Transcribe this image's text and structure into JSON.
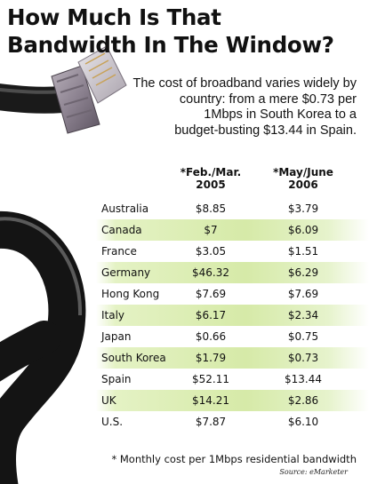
{
  "title_line1": "How Much Is That",
  "title_line2": "Bandwidth In The Window?",
  "subtitle_lines": [
    "The cost of broadband varies widely by",
    "country: from a mere $0.73 per",
    "1Mbps in South Korea to a",
    "budget-busting $13.44 in Spain."
  ],
  "footnote": "* Monthly cost per 1Mbps residential bandwidth",
  "source": "Source: eMarketer",
  "chart_data": {
    "type": "table",
    "columns": [
      {
        "line1": "*Feb./Mar.",
        "line2": "2005"
      },
      {
        "line1": "*May/June",
        "line2": "2006"
      }
    ],
    "rows": [
      {
        "country": "Australia",
        "v1": "$8.85",
        "v2": "$3.79",
        "shaded": false
      },
      {
        "country": "Canada",
        "v1": "$7",
        "v2": "$6.09",
        "shaded": true
      },
      {
        "country": "France",
        "v1": "$3.05",
        "v2": "$1.51",
        "shaded": false
      },
      {
        "country": "Germany",
        "v1": "$46.32",
        "v2": "$6.29",
        "shaded": true
      },
      {
        "country": "Hong Kong",
        "v1": "$7.69",
        "v2": "$7.69",
        "shaded": false
      },
      {
        "country": "Italy",
        "v1": "$6.17",
        "v2": "$2.34",
        "shaded": true
      },
      {
        "country": "Japan",
        "v1": "$0.66",
        "v2": "$0.75",
        "shaded": false
      },
      {
        "country": "South Korea",
        "v1": "$1.79",
        "v2": "$0.73",
        "shaded": true
      },
      {
        "country": "Spain",
        "v1": "$52.11",
        "v2": "$13.44",
        "shaded": false
      },
      {
        "country": "UK",
        "v1": "$14.21",
        "v2": "$2.86",
        "shaded": true
      },
      {
        "country": "U.S.",
        "v1": "$7.87",
        "v2": "$6.10",
        "shaded": false
      }
    ]
  }
}
